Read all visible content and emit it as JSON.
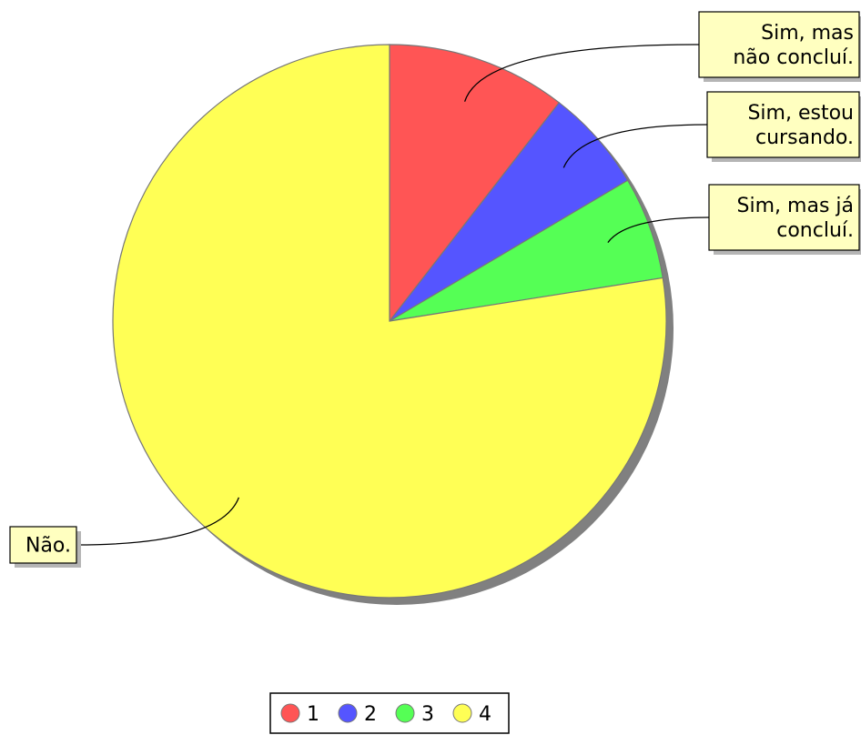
{
  "chart_data": {
    "type": "pie",
    "series": [
      {
        "values": [
          10.5,
          6.0,
          6.0,
          77.5
        ],
        "colors": [
          "#ff5555",
          "#5555ff",
          "#55ff55",
          "#ffff55"
        ],
        "callouts": [
          "Sim, mas\nnão concluí.",
          "Sim, estou\ncursando.",
          "Sim, mas já\nconcluí.",
          "Não."
        ]
      }
    ],
    "legend": {
      "placement": "bottom",
      "entries": [
        "1",
        "2",
        "3",
        "4"
      ]
    }
  }
}
